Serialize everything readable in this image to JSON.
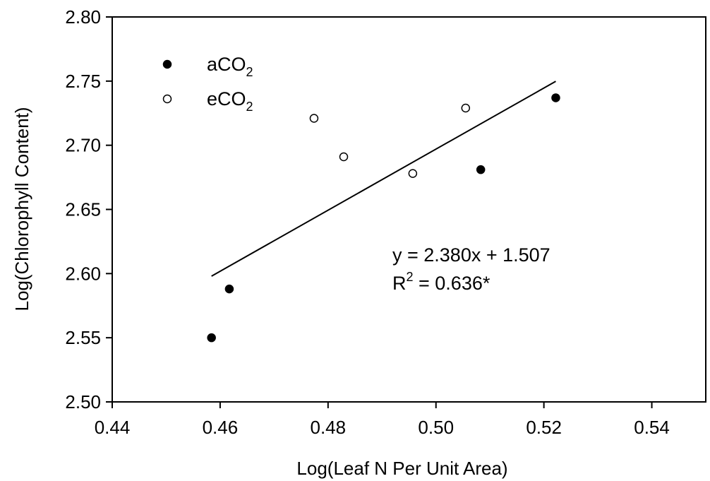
{
  "chart_data": {
    "type": "scatter",
    "title": "",
    "xlabel": "Log(Leaf N Per Unit Area)",
    "ylabel": "Log(Chlorophyll Content)",
    "xlim": [
      0.44,
      0.55
    ],
    "ylim": [
      2.5,
      2.8
    ],
    "x_ticks": [
      "0.44",
      "0.46",
      "0.48",
      "0.50",
      "0.52",
      "0.54"
    ],
    "y_ticks": [
      "2.50",
      "2.55",
      "2.60",
      "2.65",
      "2.70",
      "2.75",
      "2.80"
    ],
    "grid": false,
    "legend_position": "top-left",
    "series": [
      {
        "name": "aCO2",
        "marker": "filled-circle",
        "color": "#000000",
        "points": [
          {
            "x": 0.4584,
            "y": 2.55
          },
          {
            "x": 0.4617,
            "y": 2.588
          },
          {
            "x": 0.5083,
            "y": 2.681
          },
          {
            "x": 0.5222,
            "y": 2.737
          }
        ]
      },
      {
        "name": "eCO2",
        "marker": "open-circle",
        "color": "#000000",
        "points": [
          {
            "x": 0.4774,
            "y": 2.721
          },
          {
            "x": 0.4829,
            "y": 2.691
          },
          {
            "x": 0.4957,
            "y": 2.678
          },
          {
            "x": 0.5055,
            "y": 2.729
          }
        ]
      }
    ],
    "regression": {
      "slope": 2.38,
      "intercept": 1.507,
      "x_range": [
        0.4584,
        0.5222
      ]
    },
    "legend": {
      "a_prefix": "aCO",
      "a_sub": "2",
      "e_prefix": "eCO",
      "e_sub": "2"
    },
    "annotation": {
      "equation": "y = 2.380x + 1.507",
      "r2_prefix": "R",
      "r2_sup": "2",
      "r2_suffix": " = 0.636*"
    }
  }
}
